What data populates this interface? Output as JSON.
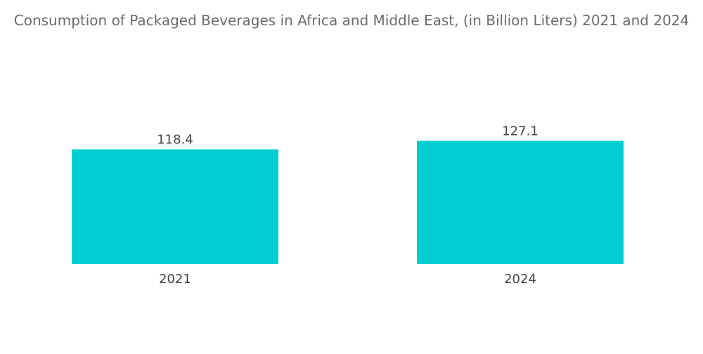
{
  "chart_data": {
    "type": "bar",
    "title": "Consumption of Packaged Beverages in Africa and Middle East, (in Billion Liters) 2021 and 2024",
    "categories": [
      "2021",
      "2024"
    ],
    "values": [
      118.4,
      127.1
    ],
    "data_labels": [
      "118.4",
      "127.1"
    ],
    "xlabel": "",
    "ylabel": "",
    "ylim": [
      0,
      135
    ],
    "grid": false,
    "legend": "none",
    "colors": {
      "bar": "#00ced1"
    }
  }
}
